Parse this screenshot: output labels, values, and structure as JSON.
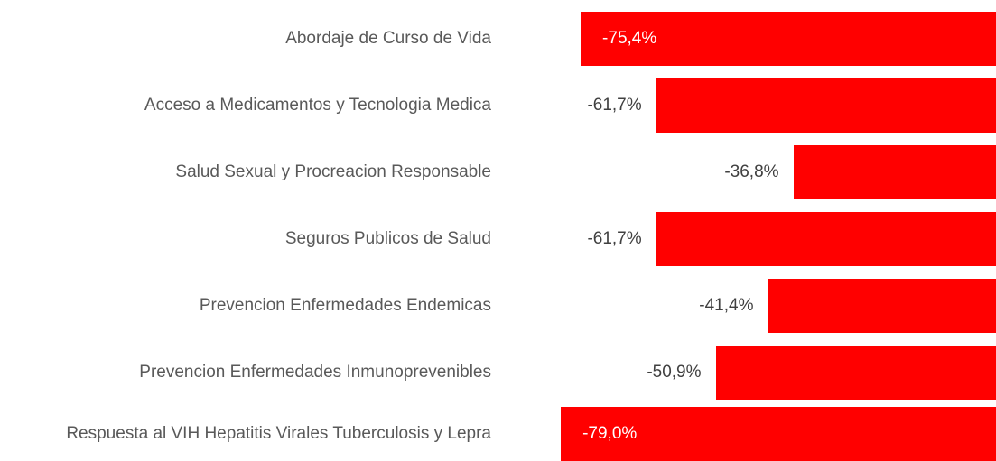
{
  "chart_data": {
    "type": "bar",
    "orientation": "horizontal",
    "categories": [
      "Abordaje de Curso de Vida",
      "Acceso a Medicamentos y Tecnologia Medica",
      "Salud Sexual y Procreacion Responsable",
      "Seguros Publicos de Salud",
      "Prevencion Enfermedades Endemicas",
      "Prevencion Enfermedades Inmunoprevenibles",
      "Respuesta al VIH Hepatitis Virales Tuberculosis y Lepra"
    ],
    "values": [
      -75.4,
      -61.7,
      -36.8,
      -61.7,
      -41.4,
      -50.9,
      -79.0
    ],
    "value_labels": [
      "-75,4%",
      "-61,7%",
      "-36,8%",
      "-61,7%",
      "-41,4%",
      "-50,9%",
      "-79,0%"
    ],
    "color": "#ff0000",
    "xlim": [
      -80,
      0
    ]
  }
}
